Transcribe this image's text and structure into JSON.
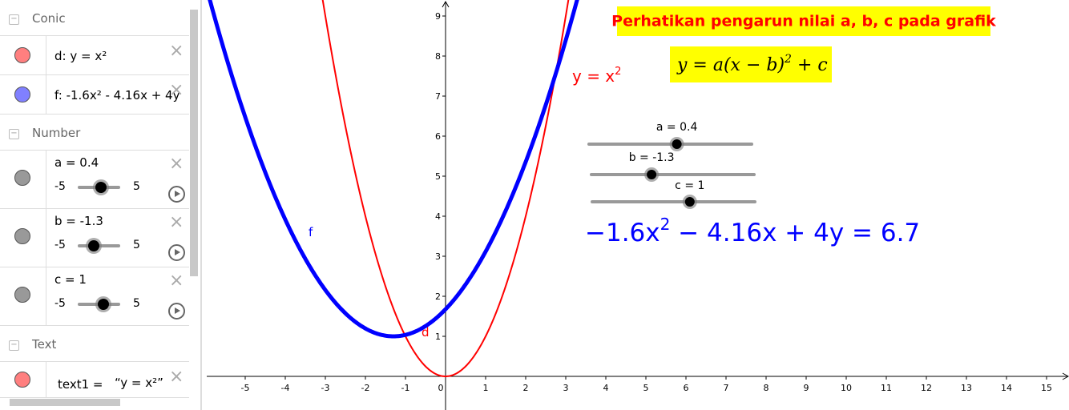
{
  "algebra": {
    "sections": [
      {
        "title": "Conic",
        "items": [
          {
            "text": "d: y = x²",
            "color": "#ff7f7f"
          },
          {
            "text": "f: -1.6x² - 4.16x + 4y",
            "color": "#8080ff"
          }
        ]
      },
      {
        "title": "Number",
        "items": [
          {
            "text": "a = 0.4",
            "value": 0.4,
            "min": -5,
            "max": 5
          },
          {
            "text": "b = -1.3",
            "value": -1.3,
            "min": -5,
            "max": 5
          },
          {
            "text": "c = 1",
            "value": 1,
            "min": -5,
            "max": 5
          }
        ]
      },
      {
        "title": "Text",
        "items": [
          {
            "name": "text1 =",
            "text": "“y = x²”",
            "color": "#ff7f7f"
          }
        ]
      }
    ]
  },
  "graphics": {
    "title": "Perhatikan pengarun nilai a, b, c pada grafik",
    "formula": [
      "y = a(x − b)",
      "2",
      " + c"
    ],
    "label_yx": [
      "y = x",
      "2"
    ],
    "equation": [
      "−1.6x",
      "2",
      " − 4.16x + 4y = 6.7"
    ],
    "curve_labels": {
      "f": "f",
      "d": "d"
    },
    "slider_labels": [
      "a = 0.4",
      "b = -1.3",
      "c = 1"
    ],
    "colors": {
      "d": "#ff0000",
      "f": "#0000ff"
    },
    "xlim": [
      -6.08,
      15.56
    ],
    "ylim": [
      -0.84,
      9.4
    ],
    "xticks": [
      -5,
      -4,
      -3,
      -2,
      -1,
      0,
      1,
      2,
      3,
      4,
      5,
      6,
      7,
      8,
      9,
      10,
      11,
      12,
      13,
      14,
      15
    ],
    "yticks": [
      1,
      2,
      3,
      4,
      5,
      6,
      7,
      8,
      9
    ]
  }
}
